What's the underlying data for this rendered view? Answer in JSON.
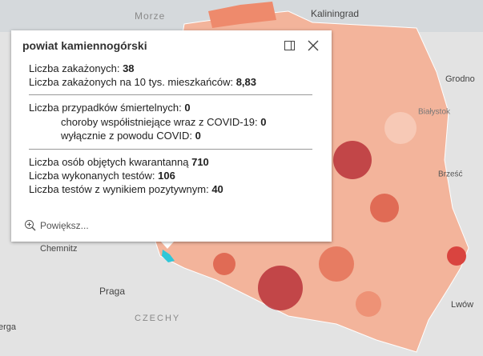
{
  "map_labels": [
    "Morze",
    "Kaliningrad",
    "Grodno",
    "Białystok",
    "Brześć",
    "Chemnitz",
    "Praga",
    "CZECHY",
    "Lwów",
    "erga"
  ],
  "popup": {
    "title": "powiat kamiennogórski",
    "sections": [
      [
        {
          "label": "Liczba zakażonych:",
          "value": 38
        },
        {
          "label": "Liczba zakażonych na 10 tys. mieszkańców:",
          "value": "8,83"
        }
      ],
      [
        {
          "label": "Liczba przypadków śmiertelnych:",
          "value": 0
        },
        {
          "label": "choroby współistniejące wraz z COVID-19:",
          "value": 0
        },
        {
          "label": "wyłącznie z powodu COVID:",
          "value": 0
        }
      ],
      [
        {
          "label": "Liczba osób objętych kwarantanną",
          "value": 710
        },
        {
          "label": "Liczba wykonanych testów:",
          "value": 106
        },
        {
          "label": "Liczba testów z wynikiem pozytywnym:",
          "value": 40
        }
      ]
    ],
    "zoom": "Powiększ..."
  }
}
